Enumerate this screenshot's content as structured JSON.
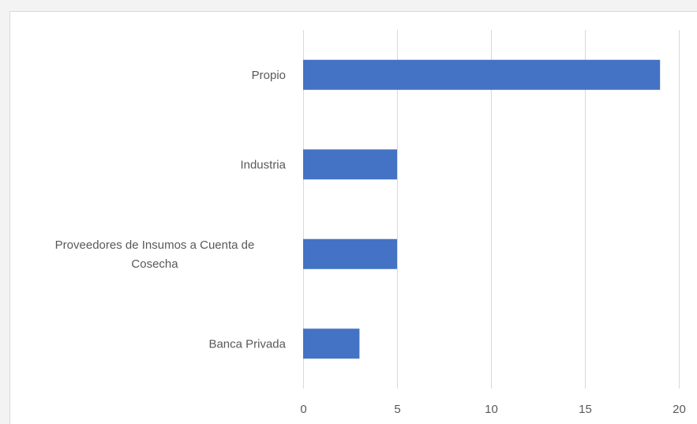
{
  "chart_data": {
    "type": "bar",
    "orientation": "horizontal",
    "categories": [
      [
        "Propio"
      ],
      [
        "Industria"
      ],
      [
        "Proveedores de Insumos a Cuenta de",
        "Cosecha"
      ],
      [
        "Banca Privada"
      ]
    ],
    "values": [
      19,
      5,
      5,
      3
    ],
    "xlim": [
      0,
      20
    ],
    "xticks": [
      "0",
      "5",
      "10",
      "15",
      "20"
    ],
    "title": "",
    "xlabel": "",
    "ylabel": "",
    "grid": "vertical",
    "legend": "none",
    "bar_color": "#4472c4",
    "grid_color": "#d9d9d9"
  }
}
